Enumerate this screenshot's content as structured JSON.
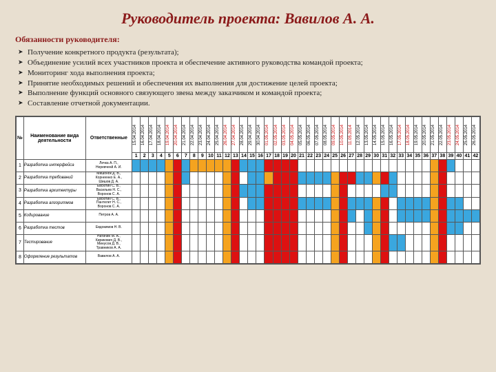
{
  "title": "Руководитель проекта: Вавилов А. А.",
  "subhead": "Обязанности руководителя:",
  "duties": [
    "Получение конкретного продукта (результата);",
    "Объединение усилий всех участников проекта и обеспечение активного руководства командой проекта;",
    "Мониторинг хода выполнения проекта;",
    "Принятие необходимых решений и обеспечения их выполнения для достижение целей проекта;",
    "Выполнение функций основного связующего звена между заказчиком и командой проекта;",
    "Составление отчетной документации."
  ],
  "head_num": "№",
  "head_task": "Наименование вида деятельности",
  "head_resp": "Ответственные",
  "dates": [
    {
      "d": "15.04.2014",
      "we": false
    },
    {
      "d": "16.04.2014",
      "we": false
    },
    {
      "d": "17.04.2014",
      "we": false
    },
    {
      "d": "18.04.2014",
      "we": false
    },
    {
      "d": "19.04.2014",
      "we": true
    },
    {
      "d": "20.04.2014",
      "we": true
    },
    {
      "d": "21.04.2014",
      "we": false
    },
    {
      "d": "22.04.2014",
      "we": false
    },
    {
      "d": "23.04.2014",
      "we": false
    },
    {
      "d": "24.04.2014",
      "we": false
    },
    {
      "d": "25.04.2014",
      "we": false
    },
    {
      "d": "26.04.2014",
      "we": true
    },
    {
      "d": "27.04.2014",
      "we": true
    },
    {
      "d": "28.04.2014",
      "we": false
    },
    {
      "d": "29.04.2014",
      "we": false
    },
    {
      "d": "30.04.2014",
      "we": false
    },
    {
      "d": "01.05.2014",
      "we": true
    },
    {
      "d": "02.05.2014",
      "we": true
    },
    {
      "d": "03.05.2014",
      "we": true
    },
    {
      "d": "04.05.2014",
      "we": true
    },
    {
      "d": "05.05.2014",
      "we": false
    },
    {
      "d": "06.05.2014",
      "we": false
    },
    {
      "d": "07.05.2014",
      "we": false
    },
    {
      "d": "08.05.2014",
      "we": false
    },
    {
      "d": "09.05.2014",
      "we": true
    },
    {
      "d": "10.05.2014",
      "we": true
    },
    {
      "d": "11.05.2014",
      "we": true
    },
    {
      "d": "12.05.2014",
      "we": false
    },
    {
      "d": "13.05.2014",
      "we": false
    },
    {
      "d": "14.05.2014",
      "we": false
    },
    {
      "d": "15.05.2014",
      "we": false
    },
    {
      "d": "16.05.2014",
      "we": false
    },
    {
      "d": "17.05.2014",
      "we": true
    },
    {
      "d": "18.05.2014",
      "we": true
    },
    {
      "d": "19.05.2014",
      "we": false
    },
    {
      "d": "20.05.2014",
      "we": false
    },
    {
      "d": "21.05.2014",
      "we": false
    },
    {
      "d": "22.05.2014",
      "we": false
    },
    {
      "d": "23.05.2014",
      "we": true
    },
    {
      "d": "24.05.2014",
      "we": true
    },
    {
      "d": "25.05.2014",
      "we": false
    },
    {
      "d": "26.05.2014",
      "we": false
    }
  ],
  "rows": [
    {
      "n": "1",
      "task": "Разработка интерфейса",
      "resp": "Лечка А. П.,\nНеревченй А. И.",
      "cells": "bbbborbooooorbbbrrrr................orb..."
    },
    {
      "n": "2",
      "task": "Разработка требований",
      "resp": "Мишонок Д. В.,\nКорнеенко Е. А.,\nШишов Д. А.",
      "cells": "....orb....or.bborrrbbbborrbborb....or...."
    },
    {
      "n": "3",
      "task": "Разработка архитектуры",
      "resp": "Евсютин С. В.,\nВасильев Н. С.,\nВоронов С. А.",
      "cells": "....or.....orbbbrrrr....or....bb....or...."
    },
    {
      "n": "4",
      "task": "Разработка алгоритмов",
      "resp": "Евсютин С. В.,\nПантелет Н. С.,\nВоронов С. А.",
      "cells": "....or.....or.bbrrrrbbbborbbbor.bbbborbb.."
    },
    {
      "n": "5",
      "task": "Кодирование",
      "resp": "Петров А. А.",
      "cells": "....or.....or...rrrr....orb.bor.bbbborbbbb"
    },
    {
      "n": "6",
      "task": "Разработка тестов",
      "resp": "Евдокимов Н. В.",
      "cells": "....or.....or...rrrr....or..bor.....orbb.."
    },
    {
      "n": "7",
      "task": "Тестирование",
      "resp": "Натачин М. А.,\nКирикович Д. В.,\nМинусов Д. В.,\nТравников А. А.",
      "cells": "....or.....or...rrrr....or...orbb...or...."
    },
    {
      "n": "8",
      "task": "Оформление результатов",
      "resp": "Вавилов А. А.",
      "cells": "....or.....or...rrrr....or...or.....or...."
    }
  ],
  "colors": {
    "b": "#3aa7df",
    "o": "#f5a31f",
    "r": "#d11"
  }
}
